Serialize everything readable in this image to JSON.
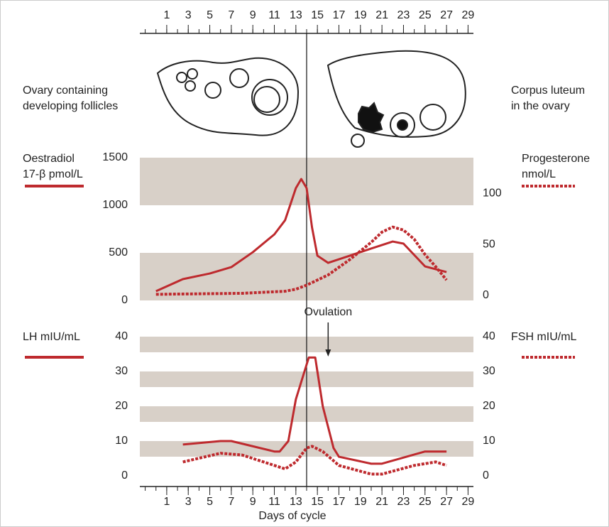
{
  "header": {
    "left_label": [
      "Ovary containing",
      "developing follicles"
    ],
    "right_label": [
      "Corpus luteum",
      "in the ovary"
    ]
  },
  "chart_data": [
    {
      "type": "line",
      "y_label": [
        "Oestradiol",
        "17-β pmol/L"
      ],
      "y2_label": [
        "Progesterone",
        "nmol/L"
      ],
      "xlim": [
        -1.5,
        29.5
      ],
      "xticks": [
        1,
        3,
        5,
        7,
        9,
        11,
        13,
        15,
        17,
        19,
        21,
        23,
        25,
        27,
        29
      ],
      "ylim": [
        0,
        1500
      ],
      "yticks": [
        0,
        500,
        1000,
        1500
      ],
      "y2lim": [
        -5,
        135
      ],
      "y2ticks": [
        0,
        50,
        100
      ],
      "vline_x": 14,
      "series": [
        {
          "color": "#be2a2e",
          "dashed": false,
          "x": [
            0,
            2.5,
            5,
            7,
            9,
            11,
            12,
            13,
            13.5,
            14,
            14.5,
            15,
            16,
            18,
            20,
            22,
            23,
            25,
            27
          ],
          "values": [
            97,
            224,
            283,
            350,
            507,
            694,
            843,
            1180,
            1276,
            1180,
            768,
            470,
            395,
            470,
            545,
            619,
            597,
            358,
            298
          ]
        },
        {
          "color": "#be2a2e",
          "dashed": true,
          "axis": "y2",
          "x": [
            0,
            4,
            8,
            10,
            12,
            13,
            14,
            15,
            16,
            18,
            20,
            21,
            22,
            23,
            24,
            25,
            26,
            27
          ],
          "values": [
            1,
            1.5,
            2,
            3,
            4,
            6,
            10,
            15,
            20,
            35,
            52,
            62,
            67,
            64,
            55,
            40,
            28,
            15
          ]
        }
      ]
    },
    {
      "type": "line",
      "y_label": [
        "LH mIU/mL"
      ],
      "y2_label": [
        "FSH mIU/mL"
      ],
      "x_label": "Days of cycle",
      "xlim": [
        -1.5,
        29.5
      ],
      "xticks": [
        1,
        3,
        5,
        7,
        9,
        11,
        13,
        15,
        17,
        19,
        21,
        23,
        25,
        27,
        29
      ],
      "ylim": [
        0,
        40
      ],
      "yticks": [
        0,
        10,
        20,
        30,
        40
      ],
      "y2lim": [
        0,
        40
      ],
      "y2ticks": [
        0,
        10,
        20,
        30,
        40
      ],
      "annotation": {
        "text": "Ovulation",
        "x": 16
      },
      "series": [
        {
          "color": "#be2a2e",
          "dashed": false,
          "x": [
            2.5,
            6,
            7,
            11,
            11.5,
            12.3,
            13,
            14,
            14.2,
            14.8,
            15.5,
            16.5,
            17,
            20,
            21,
            25,
            27
          ],
          "values": [
            9,
            10,
            10,
            7,
            7,
            10,
            22,
            32,
            34,
            34,
            20,
            8,
            5.5,
            3.5,
            3.5,
            7,
            7
          ]
        },
        {
          "color": "#be2a2e",
          "dashed": true,
          "axis": "y2",
          "x": [
            2.5,
            6,
            8,
            10,
            12,
            13,
            14,
            14.5,
            15.5,
            17,
            20,
            21,
            24,
            26,
            27
          ],
          "values": [
            4,
            6.5,
            6,
            4,
            2,
            4,
            8,
            8.5,
            7,
            3,
            0.5,
            0.5,
            3,
            4,
            3
          ]
        }
      ]
    }
  ]
}
